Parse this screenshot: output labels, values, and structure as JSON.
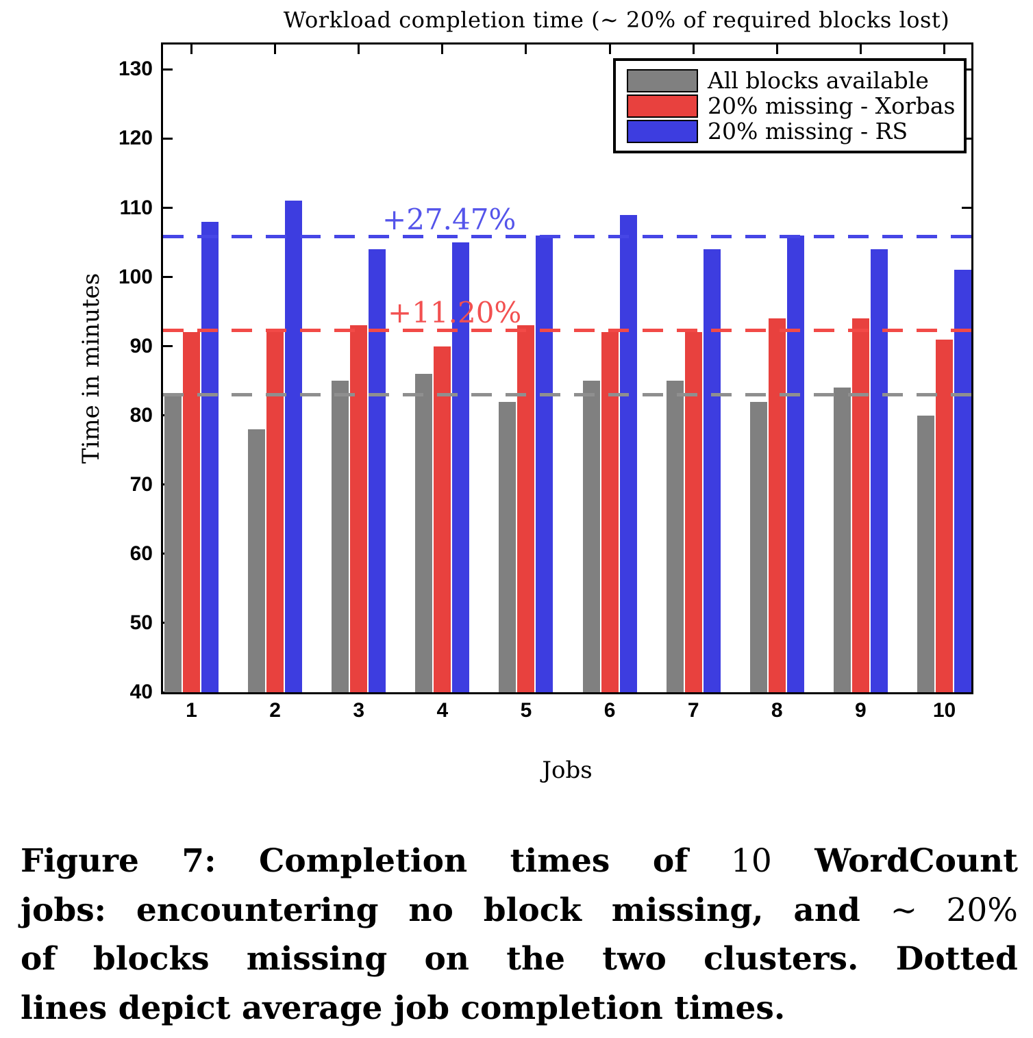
{
  "chart_data": {
    "type": "bar",
    "title": "Workload completion time (∼ 20% of required blocks lost)",
    "xlabel": "Jobs",
    "ylabel": "Time in minutes",
    "categories": [
      "1",
      "2",
      "3",
      "4",
      "5",
      "6",
      "7",
      "8",
      "9",
      "10"
    ],
    "ylim": [
      40,
      133.6
    ],
    "yticks": [
      40,
      50,
      60,
      70,
      80,
      90,
      100,
      110,
      120,
      130
    ],
    "grid": false,
    "legend_position": "top-right",
    "series": [
      {
        "name": "All blocks available",
        "color": "#808080",
        "values": [
          83,
          78,
          85,
          86,
          82,
          85,
          85,
          82,
          84,
          80
        ],
        "average": 83.0,
        "avg_line_color": "#8f8f8f",
        "avg_label": ""
      },
      {
        "name": "20% missing - Xorbas",
        "color": "#e8413e",
        "values": [
          92,
          92,
          93,
          90,
          93,
          92,
          92,
          94,
          94,
          91
        ],
        "average": 92.3,
        "avg_line_color": "#f24a47",
        "avg_label": "+11.20%",
        "avg_label_color": "#f25050"
      },
      {
        "name": "20% missing - RS",
        "color": "#3d3de0",
        "values": [
          108,
          111,
          104,
          105,
          106,
          109,
          104,
          106,
          104,
          101
        ],
        "average": 105.8,
        "avg_line_color": "#4646e6",
        "avg_label": "+27.47%",
        "avg_label_color": "#5454ea"
      }
    ]
  },
  "caption": {
    "figure_label": "Figure 7:",
    "lines": [
      [
        {
          "text": "Figure 7:",
          "bold": true
        },
        {
          "text": "Completion",
          "bold": true
        },
        {
          "text": "times",
          "bold": true
        },
        {
          "text": "of",
          "bold": true
        },
        {
          "text": "10",
          "bold": false
        },
        {
          "text": "WordCount",
          "bold": true
        }
      ],
      [
        {
          "text": "jobs:",
          "bold": true
        },
        {
          "text": "encountering",
          "bold": true
        },
        {
          "text": "no",
          "bold": true
        },
        {
          "text": "block",
          "bold": true
        },
        {
          "text": "missing,",
          "bold": true
        },
        {
          "text": "and",
          "bold": true
        },
        {
          "text": "∼ 20%",
          "bold": false
        }
      ],
      [
        {
          "text": "of",
          "bold": true
        },
        {
          "text": "blocks",
          "bold": true
        },
        {
          "text": "missing",
          "bold": true
        },
        {
          "text": "on",
          "bold": true
        },
        {
          "text": "the",
          "bold": true
        },
        {
          "text": "two",
          "bold": true
        },
        {
          "text": "clusters.",
          "bold": true
        },
        {
          "text": "Dotted",
          "bold": true
        }
      ],
      [
        {
          "text": "lines",
          "bold": true
        },
        {
          "text": "depict",
          "bold": true
        },
        {
          "text": "average",
          "bold": true
        },
        {
          "text": "job",
          "bold": true
        },
        {
          "text": "completion",
          "bold": true
        },
        {
          "text": "times.",
          "bold": true
        }
      ]
    ]
  }
}
